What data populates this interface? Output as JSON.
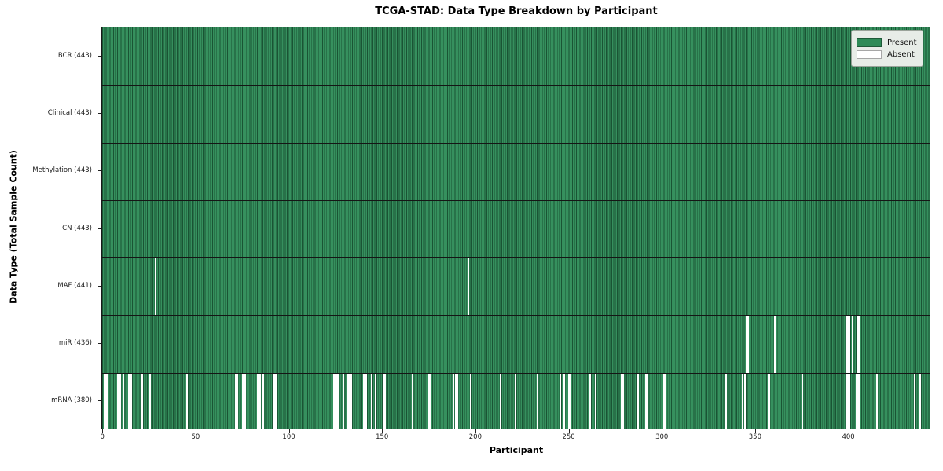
{
  "title": "TCGA-STAD: Data Type Breakdown by Participant",
  "x_axis": {
    "label": "Participant",
    "ticks": [
      0,
      50,
      100,
      150,
      200,
      250,
      300,
      350,
      400
    ]
  },
  "y_axis": {
    "label": "Data Type (Total Sample Count)"
  },
  "legend": {
    "entries": [
      {
        "label": "Present",
        "color": "#2e8b57"
      },
      {
        "label": "Absent",
        "color": "#ffffff"
      }
    ]
  },
  "chart_data": {
    "type": "heatmap",
    "title": "TCGA-STAD: Data Type Breakdown by Participant",
    "xlabel": "Participant",
    "ylabel": "Data Type (Total Sample Count)",
    "x_ticks": [
      0,
      50,
      100,
      150,
      200,
      250,
      300,
      350,
      400
    ],
    "xlim": [
      0,
      443
    ],
    "total_participants": 443,
    "colors": {
      "present": "#2e8b57",
      "absent": "#ffffff"
    },
    "legend_entries": [
      "Present",
      "Absent"
    ],
    "rows": [
      {
        "label": "BCR (443)",
        "data_type": "BCR",
        "present_count": 443,
        "absent_participants": []
      },
      {
        "label": "Clinical (443)",
        "data_type": "Clinical",
        "present_count": 443,
        "absent_participants": []
      },
      {
        "label": "Methylation (443)",
        "data_type": "Methylation",
        "present_count": 443,
        "absent_participants": []
      },
      {
        "label": "CN (443)",
        "data_type": "CN",
        "present_count": 443,
        "absent_participants": []
      },
      {
        "label": "MAF (441)",
        "data_type": "MAF",
        "present_count": 441,
        "absent_participants": [
          28,
          196
        ]
      },
      {
        "label": "miR (436)",
        "data_type": "miR",
        "present_count": 436,
        "absent_participants": [
          345,
          346,
          360,
          399,
          400,
          402,
          405
        ]
      },
      {
        "label": "mRNA (380)",
        "data_type": "mRNA",
        "present_count": 380,
        "absent_participants": [
          1,
          2,
          8,
          9,
          11,
          14,
          15,
          21,
          25,
          45,
          71,
          72,
          75,
          76,
          83,
          84,
          86,
          92,
          93,
          124,
          125,
          126,
          129,
          131,
          132,
          133,
          140,
          141,
          144,
          146,
          151,
          166,
          175,
          188,
          189,
          190,
          197,
          213,
          221,
          233,
          245,
          247,
          250,
          261,
          264,
          278,
          279,
          287,
          291,
          292,
          301,
          334,
          343,
          344,
          357,
          375,
          399,
          400,
          404,
          405,
          415,
          435,
          438
        ]
      }
    ]
  }
}
